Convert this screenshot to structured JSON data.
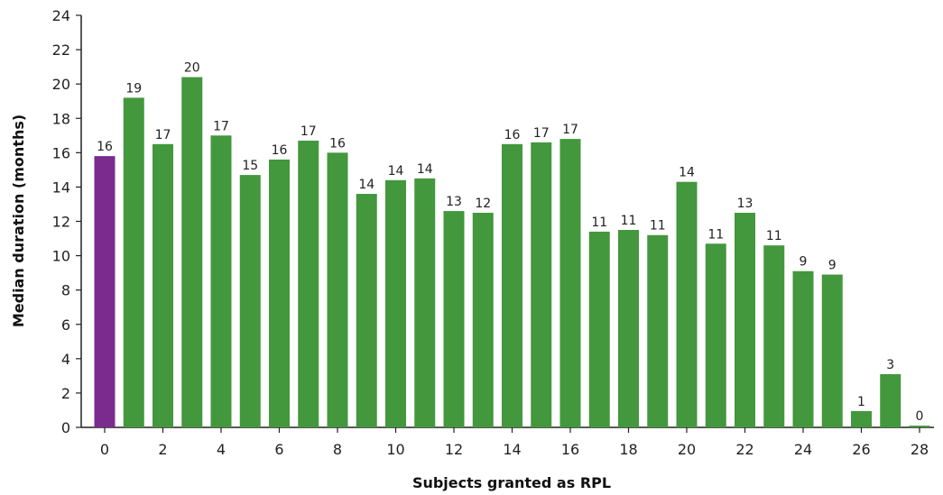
{
  "chart_data": {
    "type": "bar",
    "xlabel": "Subjects granted as RPL",
    "ylabel": "Median duration (months)",
    "ylim": [
      0,
      24
    ],
    "yticks": [
      0,
      2,
      4,
      6,
      8,
      10,
      12,
      14,
      16,
      18,
      20,
      22,
      24
    ],
    "xticks": [
      0,
      2,
      4,
      6,
      8,
      10,
      12,
      14,
      16,
      18,
      20,
      22,
      24,
      26,
      28
    ],
    "grid": false,
    "legend": "none",
    "colors": {
      "highlight": "#7b2a8d",
      "default": "#43973d"
    },
    "x": [
      0,
      1,
      2,
      3,
      4,
      5,
      6,
      7,
      8,
      9,
      10,
      11,
      12,
      13,
      14,
      15,
      16,
      17,
      18,
      19,
      20,
      21,
      22,
      23,
      24,
      25,
      26,
      27,
      28
    ],
    "values": [
      15.8,
      19.2,
      16.5,
      20.4,
      17.0,
      14.7,
      15.6,
      16.7,
      16.0,
      13.6,
      14.4,
      14.5,
      12.6,
      12.5,
      16.5,
      16.6,
      16.8,
      11.4,
      11.5,
      11.2,
      14.3,
      10.7,
      12.5,
      10.6,
      9.1,
      8.9,
      0.95,
      3.1,
      0.1
    ],
    "data_labels": [
      "16",
      "19",
      "17",
      "20",
      "17",
      "15",
      "16",
      "17",
      "16",
      "14",
      "14",
      "14",
      "13",
      "12",
      "16",
      "17",
      "17",
      "11",
      "11",
      "11",
      "14",
      "11",
      "13",
      "11",
      "9",
      "9",
      "1",
      "3",
      "0"
    ],
    "highlight_index": 0
  }
}
